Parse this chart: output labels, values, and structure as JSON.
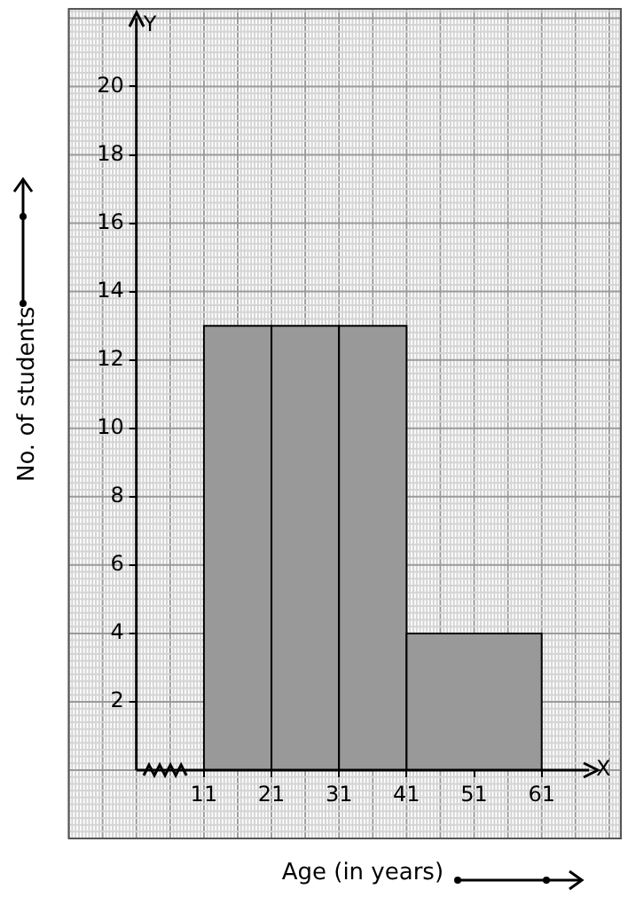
{
  "chart_data": {
    "type": "histogram",
    "xlabel": "Age (in years)",
    "ylabel": "No. of students",
    "bins": [
      11,
      21,
      31,
      41,
      61
    ],
    "values": [
      13,
      13,
      13,
      4
    ],
    "color": "#999999",
    "xlim": [
      1,
      68
    ],
    "xticks": [
      11,
      21,
      31,
      41,
      51,
      61
    ],
    "ylim": [
      0,
      22
    ],
    "yticks": [
      2,
      4,
      6,
      8,
      10,
      12,
      14,
      16,
      18,
      20
    ],
    "grid": true,
    "annotations": [
      "X",
      "Y"
    ]
  }
}
